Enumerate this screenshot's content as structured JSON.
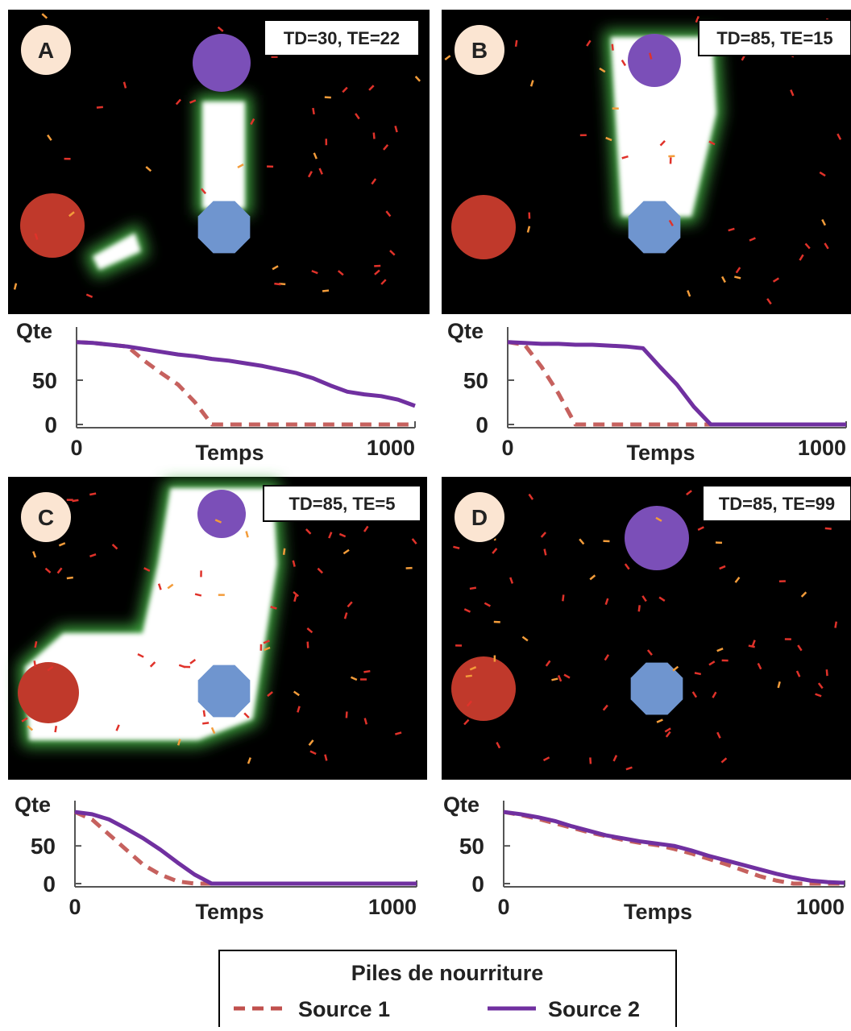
{
  "chart_data": [
    {
      "type": "line",
      "label": "A",
      "annotation": "TD=30, TE=22",
      "ylabel": "Qte",
      "xlabel": "Temps",
      "x": [
        0,
        50,
        100,
        150,
        200,
        250,
        300,
        350,
        400,
        450,
        500,
        550,
        600,
        650,
        700,
        750,
        800,
        850,
        900,
        950,
        1000
      ],
      "series": [
        {
          "color": "#c0504d",
          "dashed": true,
          "values": [
            93,
            92,
            90,
            88,
            72,
            58,
            45,
            25,
            0,
            0,
            0,
            0,
            0,
            0,
            0,
            0,
            0,
            0,
            0,
            0,
            0
          ]
        },
        {
          "color": "#7030a0",
          "dashed": false,
          "values": [
            93,
            92,
            90,
            88,
            85,
            82,
            79,
            77,
            74,
            72,
            69,
            66,
            62,
            58,
            52,
            44,
            37,
            34,
            32,
            28,
            21
          ]
        }
      ],
      "xlim": [
        0,
        1000
      ],
      "ylim": [
        0,
        110
      ],
      "xticks": [
        0,
        1000
      ],
      "yticks": [
        0,
        50
      ]
    },
    {
      "type": "line",
      "label": "B",
      "annotation": "TD=85, TE=15",
      "ylabel": "Qte",
      "xlabel": "Temps",
      "x": [
        0,
        50,
        100,
        150,
        200,
        250,
        300,
        350,
        400,
        450,
        500,
        550,
        600,
        650,
        700,
        750,
        800,
        850,
        900,
        950,
        1000
      ],
      "series": [
        {
          "color": "#c0504d",
          "dashed": true,
          "values": [
            93,
            90,
            65,
            35,
            0,
            0,
            0,
            0,
            0,
            0,
            0,
            0,
            0,
            0,
            0,
            0,
            0,
            0,
            0,
            0,
            0
          ]
        },
        {
          "color": "#7030a0",
          "dashed": false,
          "values": [
            93,
            92,
            91,
            91,
            90,
            90,
            89,
            88,
            86,
            65,
            45,
            20,
            0,
            0,
            0,
            0,
            0,
            0,
            0,
            0,
            0
          ]
        }
      ],
      "xlim": [
        0,
        1000
      ],
      "ylim": [
        0,
        110
      ],
      "xticks": [
        0,
        1000
      ],
      "yticks": [
        0,
        50
      ]
    },
    {
      "type": "line",
      "label": "C",
      "annotation": "TD=85, TE=5",
      "ylabel": "Qte",
      "xlabel": "Temps",
      "x": [
        0,
        50,
        100,
        150,
        200,
        250,
        300,
        350,
        400,
        450,
        500,
        550,
        600,
        650,
        700,
        750,
        800,
        850,
        900,
        950,
        1000
      ],
      "series": [
        {
          "color": "#c0504d",
          "dashed": true,
          "values": [
            95,
            85,
            65,
            45,
            25,
            12,
            3,
            0,
            0,
            0,
            0,
            0,
            0,
            0,
            0,
            0,
            0,
            0,
            0,
            0,
            0
          ]
        },
        {
          "color": "#7030a0",
          "dashed": false,
          "values": [
            95,
            92,
            85,
            73,
            60,
            45,
            28,
            12,
            0,
            0,
            0,
            0,
            0,
            0,
            0,
            0,
            0,
            0,
            0,
            0,
            0
          ]
        }
      ],
      "xlim": [
        0,
        1000
      ],
      "ylim": [
        0,
        110
      ],
      "xticks": [
        0,
        1000
      ],
      "yticks": [
        0,
        50
      ]
    },
    {
      "type": "line",
      "label": "D",
      "annotation": "TD=85, TE=99",
      "ylabel": "Qte",
      "xlabel": "Temps",
      "x": [
        0,
        50,
        100,
        150,
        200,
        250,
        300,
        350,
        400,
        450,
        500,
        550,
        600,
        650,
        700,
        750,
        800,
        850,
        900,
        950,
        1000
      ],
      "series": [
        {
          "color": "#c0504d",
          "dashed": true,
          "values": [
            95,
            91,
            86,
            80,
            74,
            68,
            63,
            58,
            54,
            51,
            46,
            40,
            33,
            26,
            18,
            10,
            4,
            0,
            0,
            0,
            0
          ]
        },
        {
          "color": "#7030a0",
          "dashed": false,
          "values": [
            95,
            92,
            88,
            83,
            76,
            70,
            64,
            60,
            56,
            53,
            50,
            44,
            37,
            31,
            25,
            19,
            13,
            8,
            4,
            2,
            1
          ]
        }
      ],
      "xlim": [
        0,
        1000
      ],
      "ylim": [
        0,
        110
      ],
      "xticks": [
        0,
        1000
      ],
      "yticks": [
        0,
        50
      ]
    }
  ],
  "legend": {
    "title": "Piles de nourriture",
    "entries": [
      {
        "name": "Source 1",
        "color": "#c0504d",
        "dashed": true
      },
      {
        "name": "Source 2",
        "color": "#7030a0",
        "dashed": false
      }
    ]
  }
}
